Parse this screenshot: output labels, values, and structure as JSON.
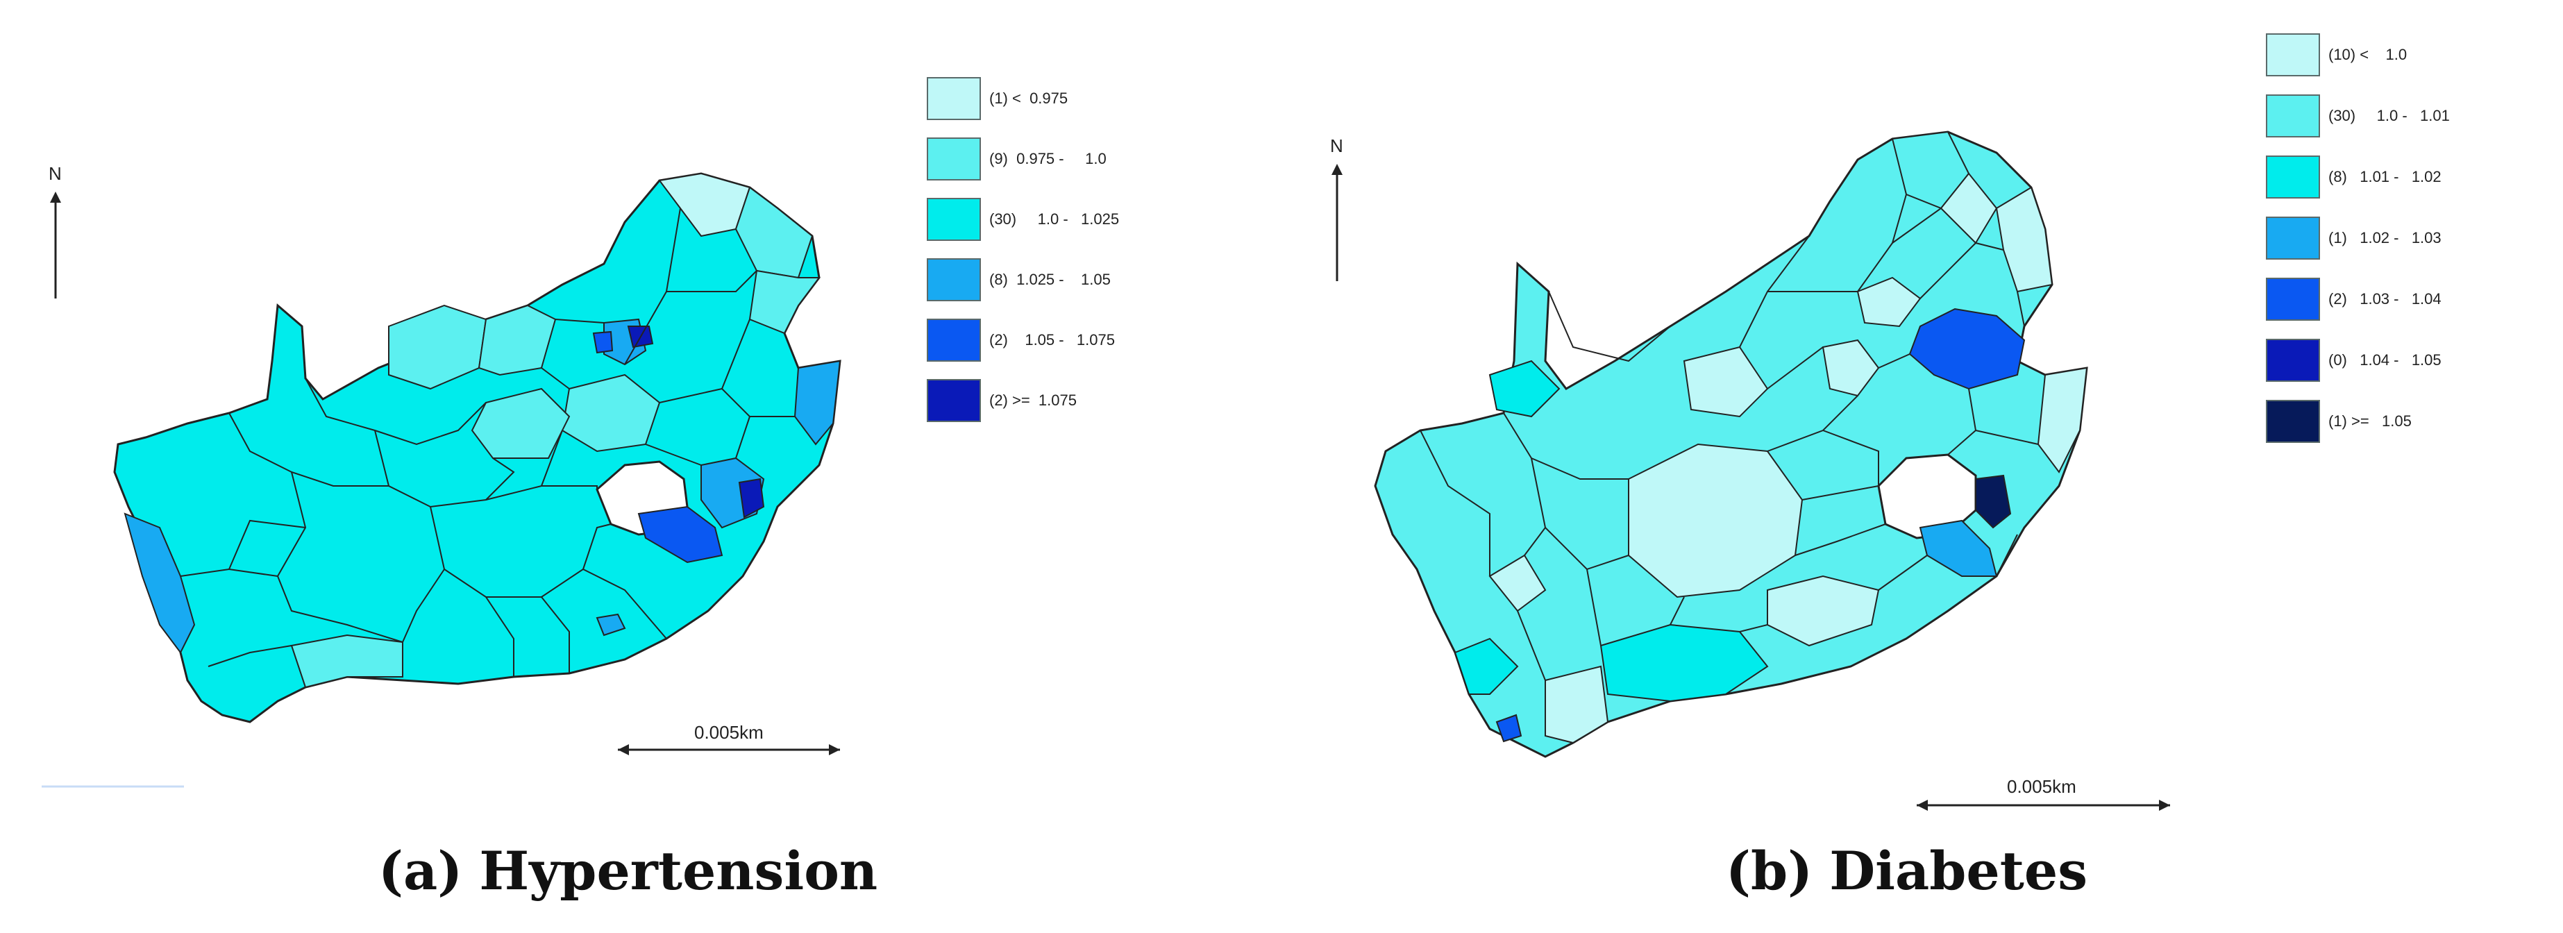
{
  "panels": [
    {
      "caption_letter": "(a)",
      "caption_title": "Hypertension",
      "north_label": "N",
      "scale_label": "0.005km",
      "legend": [
        {
          "label": "(1) <  0.975",
          "color": "#bff8f8"
        },
        {
          "label": "(9)  0.975 -     1.0",
          "color": "#5cf0f0"
        },
        {
          "label": "(30)     1.0 -   1.025",
          "color": "#00ecec"
        },
        {
          "label": "(8)  1.025 -    1.05",
          "color": "#18aaf2"
        },
        {
          "label": "(2)    1.05 -   1.075",
          "color": "#0a58f2"
        },
        {
          "label": "(2) >=  1.075",
          "color": "#0a1ab8"
        }
      ]
    },
    {
      "caption_letter": "(b)",
      "caption_title": "Diabetes",
      "north_label": "N",
      "scale_label": "0.005km",
      "legend": [
        {
          "label": "(10) <    1.0",
          "color": "#bff8f8"
        },
        {
          "label": "(30)     1.0 -   1.01",
          "color": "#5cf0f0"
        },
        {
          "label": "(8)   1.01 -   1.02",
          "color": "#00ecec"
        },
        {
          "label": "(1)   1.02 -   1.03",
          "color": "#18aaf2"
        },
        {
          "label": "(2)   1.03 -   1.04",
          "color": "#0a58f2"
        },
        {
          "label": "(0)   1.04 -   1.05",
          "color": "#0a1ab8"
        },
        {
          "label": "(1) >=   1.05",
          "color": "#061a5a"
        }
      ]
    }
  ]
}
